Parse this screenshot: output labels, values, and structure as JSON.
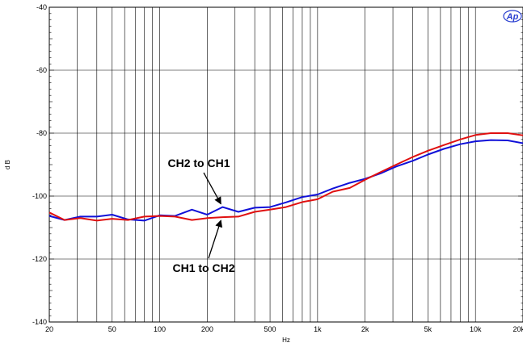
{
  "chart_data": {
    "type": "line",
    "x_scale": "log",
    "xlim": [
      20,
      20000
    ],
    "ylim": [
      -140,
      -40
    ],
    "xlabel": "Hz",
    "ylabel": "d B",
    "grid": true,
    "x_ticks": [
      {
        "value": 20,
        "label": "20"
      },
      {
        "value": 50,
        "label": "50"
      },
      {
        "value": 100,
        "label": "100"
      },
      {
        "value": 200,
        "label": "200"
      },
      {
        "value": 500,
        "label": "500"
      },
      {
        "value": 1000,
        "label": "1k"
      },
      {
        "value": 2000,
        "label": "2k"
      },
      {
        "value": 5000,
        "label": "5k"
      },
      {
        "value": 10000,
        "label": "10k"
      },
      {
        "value": 20000,
        "label": "20k"
      }
    ],
    "y_ticks": [
      -40,
      -60,
      -80,
      -100,
      -120,
      -140
    ],
    "series": [
      {
        "name": "CH2 to CH1",
        "color": "#1010d8",
        "x": [
          20,
          25,
          31.5,
          40,
          50,
          63,
          80,
          100,
          125,
          160,
          200,
          250,
          315,
          400,
          500,
          630,
          800,
          1000,
          1250,
          1600,
          2000,
          2500,
          3150,
          4000,
          5000,
          6300,
          8000,
          10000,
          12500,
          16000,
          20000
        ],
        "y": [
          -106.3,
          -107.6,
          -106.5,
          -106.5,
          -105.9,
          -107.4,
          -107.8,
          -106.1,
          -106.3,
          -104.3,
          -105.9,
          -103.5,
          -105.0,
          -103.7,
          -103.5,
          -102.0,
          -100.3,
          -99.5,
          -97.6,
          -95.8,
          -94.5,
          -92.8,
          -90.6,
          -88.8,
          -86.8,
          -85.0,
          -83.5,
          -82.6,
          -82.2,
          -82.3,
          -83.2
        ]
      },
      {
        "name": "CH1 to CH2",
        "color": "#e01010",
        "x": [
          20,
          25,
          31.5,
          40,
          50,
          63,
          80,
          100,
          125,
          160,
          200,
          250,
          315,
          400,
          500,
          630,
          800,
          1000,
          1250,
          1600,
          2000,
          2500,
          3150,
          4000,
          5000,
          6300,
          8000,
          10000,
          12500,
          16000,
          20000
        ],
        "y": [
          -105.2,
          -107.6,
          -107.0,
          -107.8,
          -107.2,
          -107.6,
          -106.5,
          -106.3,
          -106.5,
          -107.6,
          -107.0,
          -106.7,
          -106.5,
          -105.0,
          -104.3,
          -103.5,
          -101.9,
          -101.0,
          -98.6,
          -97.4,
          -94.8,
          -92.4,
          -90.0,
          -87.6,
          -85.6,
          -83.8,
          -82.0,
          -80.6,
          -80.0,
          -80.0,
          -80.7
        ]
      }
    ],
    "annotations": [
      {
        "text": "CH2 to CH1",
        "target_series": "CH2 to CH1",
        "at_x": 250
      },
      {
        "text": "CH1 to CH2",
        "target_series": "CH1 to CH2",
        "at_x": 250
      }
    ]
  },
  "logo_text": "Ap"
}
